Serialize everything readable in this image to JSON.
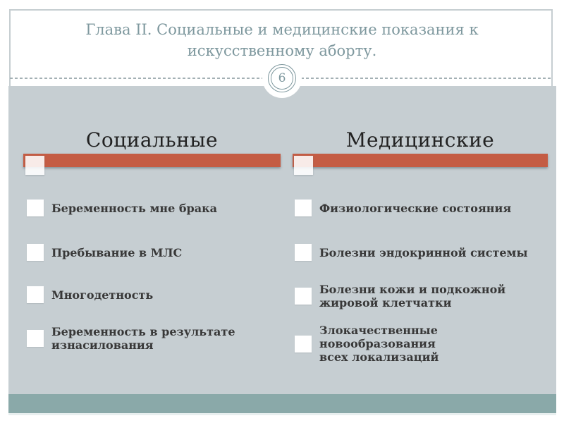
{
  "slide": {
    "title": "Глава II. Социальные и медицинские показания к\nискусственному аборту.",
    "page_number": "6",
    "columns": [
      {
        "header": "Социальные",
        "items": [
          "Беременность мне брака",
          "Пребывание в МЛС",
          "Многодетность",
          "Беременность в результате\nизнасилования"
        ]
      },
      {
        "header": "Медицинские",
        "items": [
          "Физиологические состояния",
          "Болезни эндокринной системы",
          "Болезни кожи и подкожной\nжировой клетчатки",
          "Злокачественные новообразования\nвсех локализаций"
        ]
      }
    ],
    "colors": {
      "accent_bar": "#C45C44",
      "content_band": "#C6CED2",
      "footer_strip": "#8AA9A9",
      "title_text": "#7E989E",
      "body_text": "#383838"
    }
  }
}
